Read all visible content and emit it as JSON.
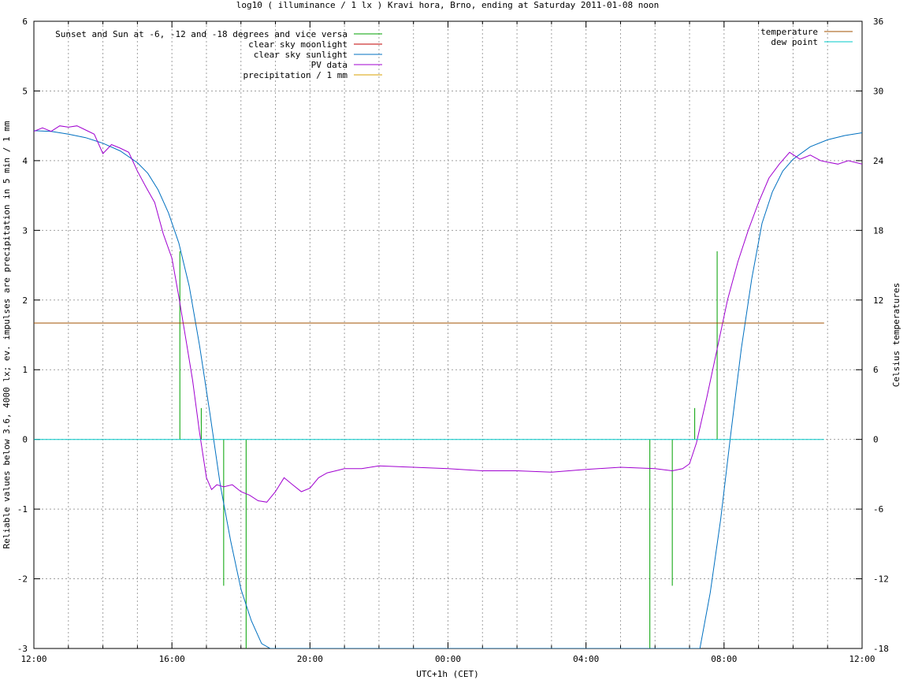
{
  "chart_data": {
    "type": "line",
    "title": "log10 ( illuminance / 1 lx ) Kravi hora, Brno, ending at Saturday 2011-01-08 noon",
    "xlabel": "UTC+1h (CET)",
    "ylabel": "Reliable values below 3.6, 4000 lx; ev. impulses are precipitation in 5 min / 1 mm",
    "y2label": "Celsius temperatures",
    "x_unit": "hours since 12:00 (x axis runs 12:00 to next day 12:00)",
    "xlim": [
      0,
      24
    ],
    "ylim": [
      -3,
      6
    ],
    "y2lim": [
      -18,
      36
    ],
    "grid": true,
    "x_ticks": [
      {
        "v": 0,
        "label": "12:00"
      },
      {
        "v": 4,
        "label": "16:00"
      },
      {
        "v": 8,
        "label": "20:00"
      },
      {
        "v": 12,
        "label": "00:00"
      },
      {
        "v": 16,
        "label": "04:00"
      },
      {
        "v": 20,
        "label": "08:00"
      },
      {
        "v": 24,
        "label": "12:00"
      }
    ],
    "y_ticks": [
      {
        "v": -3,
        "label": "-3"
      },
      {
        "v": -2,
        "label": "-2"
      },
      {
        "v": -1,
        "label": "-1"
      },
      {
        "v": 0,
        "label": "0"
      },
      {
        "v": 1,
        "label": "1"
      },
      {
        "v": 2,
        "label": "2"
      },
      {
        "v": 3,
        "label": "3"
      },
      {
        "v": 4,
        "label": "4"
      },
      {
        "v": 5,
        "label": "5"
      },
      {
        "v": 6,
        "label": "6"
      }
    ],
    "y2_ticks": [
      {
        "v": -18,
        "label": "-18"
      },
      {
        "v": -12,
        "label": "-12"
      },
      {
        "v": -6,
        "label": "-6"
      },
      {
        "v": 0,
        "label": "0"
      },
      {
        "v": 6,
        "label": "6"
      },
      {
        "v": 12,
        "label": "12"
      },
      {
        "v": 18,
        "label": "18"
      },
      {
        "v": 24,
        "label": "24"
      },
      {
        "v": 30,
        "label": "30"
      },
      {
        "v": 36,
        "label": "36"
      }
    ],
    "legend_left": [
      {
        "name": "Sunset and Sun at -6, -12 and -18 degrees and vice versa",
        "color": "#00a000"
      },
      {
        "name": "clear sky moonlight",
        "color": "#c00000"
      },
      {
        "name": "clear sky sunlight",
        "color": "#0070c0"
      },
      {
        "name": "PV data",
        "color": "#a000d0"
      },
      {
        "name": "precipitation / 1 mm",
        "color": "#d8a000"
      }
    ],
    "legend_right": [
      {
        "name": "temperature",
        "color": "#a05000"
      },
      {
        "name": "dew point",
        "color": "#00c8c8"
      }
    ],
    "series": [
      {
        "name": "clear sky sunlight",
        "color": "#0070c0",
        "axis": "y",
        "x": [
          0,
          0.5,
          1,
          1.5,
          2,
          2.5,
          3,
          3.3,
          3.6,
          3.9,
          4.2,
          4.5,
          4.8,
          5.1,
          5.4,
          5.7,
          6.0,
          6.3,
          6.6,
          6.85,
          19.3,
          19.6,
          19.9,
          20.2,
          20.5,
          20.8,
          21.1,
          21.4,
          21.7,
          22.0,
          22.5,
          23.0,
          23.5,
          24.0
        ],
        "y": [
          4.43,
          4.42,
          4.38,
          4.33,
          4.25,
          4.14,
          3.97,
          3.82,
          3.58,
          3.25,
          2.82,
          2.2,
          1.35,
          0.38,
          -0.65,
          -1.45,
          -2.15,
          -2.6,
          -2.93,
          -3.0,
          -3.0,
          -2.2,
          -1.15,
          0.1,
          1.3,
          2.3,
          3.1,
          3.55,
          3.85,
          4.02,
          4.2,
          4.3,
          4.36,
          4.4
        ]
      },
      {
        "name": "PV data",
        "color": "#a000d0",
        "axis": "y",
        "x": [
          0,
          0.25,
          0.5,
          0.75,
          1.0,
          1.25,
          1.5,
          1.75,
          2.0,
          2.25,
          2.5,
          2.75,
          3.0,
          3.25,
          3.5,
          3.75,
          4.0,
          4.2,
          4.4,
          4.6,
          4.8,
          5.0,
          5.15,
          5.3,
          5.5,
          5.75,
          6.0,
          6.25,
          6.5,
          6.75,
          7.0,
          7.25,
          7.5,
          7.75,
          8.0,
          8.25,
          8.5,
          8.75,
          9.0,
          9.5,
          10.0,
          11.0,
          12.0,
          13.0,
          14.0,
          15.0,
          16.0,
          17.0,
          18.0,
          18.5,
          18.8,
          19.0,
          19.2,
          19.5,
          19.8,
          20.1,
          20.4,
          20.7,
          21.0,
          21.3,
          21.6,
          21.9,
          22.2,
          22.5,
          22.8,
          23.0,
          23.3,
          23.6,
          24.0
        ],
        "y": [
          4.42,
          4.47,
          4.42,
          4.5,
          4.48,
          4.5,
          4.44,
          4.38,
          4.1,
          4.23,
          4.18,
          4.12,
          3.85,
          3.62,
          3.4,
          2.95,
          2.6,
          2.05,
          1.45,
          0.85,
          0.1,
          -0.55,
          -0.72,
          -0.65,
          -0.68,
          -0.65,
          -0.75,
          -0.8,
          -0.88,
          -0.9,
          -0.75,
          -0.55,
          -0.65,
          -0.75,
          -0.7,
          -0.55,
          -0.48,
          -0.45,
          -0.42,
          -0.42,
          -0.38,
          -0.4,
          -0.42,
          -0.45,
          -0.45,
          -0.47,
          -0.43,
          -0.4,
          -0.42,
          -0.45,
          -0.42,
          -0.35,
          -0.05,
          0.6,
          1.3,
          2.0,
          2.55,
          3.0,
          3.4,
          3.75,
          3.95,
          4.12,
          4.02,
          4.08,
          4.0,
          3.98,
          3.95,
          4.0,
          3.95
        ]
      },
      {
        "name": "temperature",
        "color": "#a05000",
        "axis": "y",
        "x": [
          0,
          22.9
        ],
        "y": [
          1.67,
          1.67
        ]
      },
      {
        "name": "dew point",
        "color": "#00c8c8",
        "axis": "y",
        "x": [
          0,
          22.9
        ],
        "y": [
          0,
          0
        ]
      }
    ],
    "impulses": {
      "name": "Sunset and Sun at -6, -12 and -18 degrees and vice versa",
      "color": "#00a000",
      "x": [
        4.23,
        4.85,
        5.5,
        6.15,
        17.85,
        18.5,
        19.15,
        19.8
      ],
      "y": [
        2.7,
        0.45,
        -2.1,
        -3.0,
        -3.0,
        -2.1,
        0.45,
        2.7
      ]
    }
  }
}
